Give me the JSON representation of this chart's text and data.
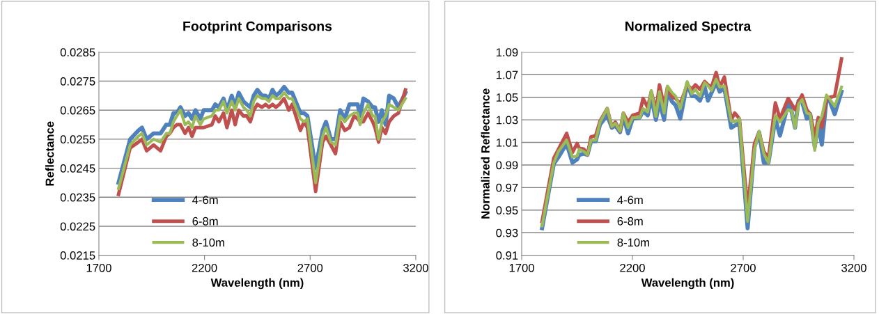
{
  "chart_data": [
    {
      "type": "line",
      "title": "Footprint Comparisons",
      "xlabel": "Wavelength (nm)",
      "ylabel": "Reflectance",
      "x": [
        1793,
        1848,
        1887,
        1904,
        1926,
        1959,
        1992,
        2019,
        2036,
        2053,
        2069,
        2086,
        2108,
        2124,
        2141,
        2157,
        2180,
        2196,
        2235,
        2251,
        2268,
        2290,
        2306,
        2329,
        2345,
        2362,
        2384,
        2400,
        2417,
        2433,
        2450,
        2472,
        2489,
        2505,
        2522,
        2538,
        2555,
        2577,
        2599,
        2615,
        2654,
        2671,
        2687,
        2726,
        2759,
        2775,
        2798,
        2820,
        2842,
        2864,
        2886,
        2908,
        2925,
        2936,
        2952,
        2974,
        2996,
        3007,
        3024,
        3040,
        3057,
        3074,
        3096,
        3118,
        3151
      ],
      "series": [
        {
          "name": "4-6m",
          "color": "#4f81bd",
          "values": [
            0.024,
            0.0255,
            0.0258,
            0.0259,
            0.0255,
            0.0257,
            0.0257,
            0.026,
            0.026,
            0.0264,
            0.0264,
            0.0266,
            0.0263,
            0.0264,
            0.0262,
            0.0265,
            0.0262,
            0.0265,
            0.0265,
            0.0267,
            0.0266,
            0.0269,
            0.0265,
            0.027,
            0.0266,
            0.0271,
            0.0268,
            0.0267,
            0.0266,
            0.027,
            0.0272,
            0.027,
            0.027,
            0.0269,
            0.0272,
            0.027,
            0.0271,
            0.0273,
            0.0271,
            0.0271,
            0.0264,
            0.0264,
            0.0263,
            0.0245,
            0.0258,
            0.0261,
            0.0255,
            0.0255,
            0.0265,
            0.0262,
            0.0267,
            0.0267,
            0.0267,
            0.0263,
            0.0269,
            0.0268,
            0.0266,
            0.0266,
            0.0261,
            0.0265,
            0.026,
            0.027,
            0.0269,
            0.0266,
            0.0271
          ]
        },
        {
          "name": "6-8m",
          "color": "#c0504d",
          "values": [
            0.0236,
            0.0252,
            0.0254,
            0.0255,
            0.0251,
            0.0253,
            0.0251,
            0.0256,
            0.0257,
            0.0259,
            0.026,
            0.026,
            0.0257,
            0.0259,
            0.0256,
            0.0259,
            0.0259,
            0.0259,
            0.026,
            0.0263,
            0.0261,
            0.0264,
            0.0259,
            0.0265,
            0.026,
            0.0265,
            0.0263,
            0.0263,
            0.0261,
            0.0265,
            0.0267,
            0.0266,
            0.0267,
            0.0266,
            0.0267,
            0.0266,
            0.0267,
            0.0269,
            0.0265,
            0.0267,
            0.0258,
            0.0261,
            0.0259,
            0.0237,
            0.0254,
            0.0256,
            0.0253,
            0.025,
            0.0261,
            0.0258,
            0.0259,
            0.0263,
            0.0262,
            0.0261,
            0.0261,
            0.0264,
            0.0261,
            0.0259,
            0.0254,
            0.0259,
            0.0257,
            0.0261,
            0.0263,
            0.0264,
            0.0272
          ]
        },
        {
          "name": "8-10m",
          "color": "#9bbb59",
          "values": [
            0.0238,
            0.0253,
            0.0256,
            0.0257,
            0.0253,
            0.0255,
            0.0254,
            0.0257,
            0.0257,
            0.0261,
            0.0263,
            0.0265,
            0.026,
            0.0261,
            0.0259,
            0.0263,
            0.026,
            0.0262,
            0.0263,
            0.0265,
            0.0265,
            0.0268,
            0.0264,
            0.0268,
            0.0265,
            0.0269,
            0.0266,
            0.0265,
            0.0263,
            0.0268,
            0.027,
            0.0269,
            0.0269,
            0.0268,
            0.027,
            0.0269,
            0.0269,
            0.0271,
            0.0269,
            0.0269,
            0.0262,
            0.0261,
            0.0262,
            0.024,
            0.0256,
            0.0259,
            0.0254,
            0.0253,
            0.0263,
            0.0261,
            0.0263,
            0.0264,
            0.0264,
            0.026,
            0.0264,
            0.0267,
            0.0263,
            0.0263,
            0.0255,
            0.0261,
            0.0263,
            0.0267,
            0.0266,
            0.0265,
            0.0269
          ]
        }
      ],
      "xlim": [
        1700,
        3200
      ],
      "xticks": [
        1700,
        2200,
        2700,
        3200
      ],
      "ylim": [
        0.0215,
        0.0285
      ],
      "yticks": [
        0.0215,
        0.0225,
        0.0235,
        0.0245,
        0.0255,
        0.0265,
        0.0275,
        0.0285
      ],
      "grid": "y",
      "legend": "bottom left",
      "marker": "none",
      "line_style": "solid"
    },
    {
      "type": "line",
      "title": "Normalized Spectra",
      "xlabel": "Wavelength (nm)",
      "ylabel": "Normalized Reflectance",
      "x": [
        1792,
        1845,
        1866,
        1903,
        1929,
        1950,
        1960,
        1981,
        1997,
        2013,
        2034,
        2054,
        2086,
        2107,
        2123,
        2144,
        2159,
        2180,
        2201,
        2233,
        2248,
        2269,
        2285,
        2306,
        2322,
        2343,
        2358,
        2379,
        2395,
        2416,
        2447,
        2468,
        2484,
        2505,
        2526,
        2541,
        2557,
        2578,
        2594,
        2615,
        2646,
        2662,
        2683,
        2720,
        2751,
        2772,
        2793,
        2814,
        2845,
        2866,
        2903,
        2919,
        2934,
        2950,
        2966,
        2987,
        3003,
        3023,
        3039,
        3055,
        3076,
        3092,
        3113,
        3144
      ],
      "series": [
        {
          "name": "4-6m",
          "color": "#4f81bd",
          "values": [
            0.934,
            0.991,
            0.997,
            1.009,
            0.992,
            0.995,
            0.999,
            1.0,
            0.999,
            1.011,
            1.011,
            1.026,
            1.034,
            1.023,
            1.025,
            1.019,
            1.033,
            1.018,
            1.031,
            1.032,
            1.038,
            1.034,
            1.05,
            1.03,
            1.046,
            1.03,
            1.054,
            1.046,
            1.043,
            1.031,
            1.062,
            1.051,
            1.051,
            1.047,
            1.059,
            1.047,
            1.054,
            1.063,
            1.055,
            1.058,
            1.023,
            1.025,
            1.027,
            0.934,
            1.006,
            1.019,
            0.992,
            0.992,
            1.031,
            1.016,
            1.044,
            1.037,
            1.023,
            1.047,
            1.046,
            1.031,
            1.035,
            1.006,
            1.026,
            1.008,
            1.048,
            1.046,
            1.035,
            1.055
          ]
        },
        {
          "name": "6-8m",
          "color": "#c0504d",
          "values": [
            0.94,
            0.996,
            1.004,
            1.018,
            1.001,
            1.009,
            1.005,
            1.004,
            0.999,
            1.015,
            1.016,
            1.029,
            1.04,
            1.024,
            1.028,
            1.02,
            1.036,
            1.028,
            1.034,
            1.036,
            1.049,
            1.041,
            1.055,
            1.038,
            1.061,
            1.042,
            1.059,
            1.05,
            1.049,
            1.044,
            1.061,
            1.057,
            1.061,
            1.057,
            1.064,
            1.061,
            1.059,
            1.072,
            1.059,
            1.068,
            1.03,
            1.036,
            1.031,
            0.951,
            1.009,
            1.019,
            1.002,
            0.996,
            1.045,
            1.031,
            1.049,
            1.044,
            1.039,
            1.046,
            1.052,
            1.039,
            1.035,
            1.015,
            1.032,
            1.023,
            1.048,
            1.05,
            1.051,
            1.084
          ]
        },
        {
          "name": "8-10m",
          "color": "#9bbb59",
          "values": [
            0.936,
            0.992,
            1.002,
            1.012,
            0.997,
            0.998,
            1.004,
            1.002,
            0.999,
            1.012,
            1.012,
            1.028,
            1.04,
            1.024,
            1.027,
            1.02,
            1.036,
            1.023,
            1.032,
            1.032,
            1.04,
            1.037,
            1.056,
            1.033,
            1.055,
            1.036,
            1.06,
            1.054,
            1.051,
            1.04,
            1.064,
            1.053,
            1.057,
            1.051,
            1.063,
            1.06,
            1.056,
            1.066,
            1.059,
            1.06,
            1.029,
            1.028,
            1.031,
            0.94,
            1.004,
            1.02,
            1.0,
            0.992,
            1.034,
            1.028,
            1.039,
            1.038,
            1.023,
            1.044,
            1.048,
            1.036,
            1.035,
            1.003,
            1.027,
            1.033,
            1.052,
            1.048,
            1.042,
            1.059
          ]
        }
      ],
      "xlim": [
        1700,
        3200
      ],
      "xticks": [
        1700,
        2200,
        2700,
        3200
      ],
      "ylim": [
        0.91,
        1.09
      ],
      "yticks": [
        0.91,
        0.93,
        0.95,
        0.97,
        0.99,
        1.01,
        1.03,
        1.05,
        1.07,
        1.09
      ],
      "grid": "y",
      "legend": "bottom left",
      "marker": "none",
      "line_style": "solid"
    }
  ]
}
